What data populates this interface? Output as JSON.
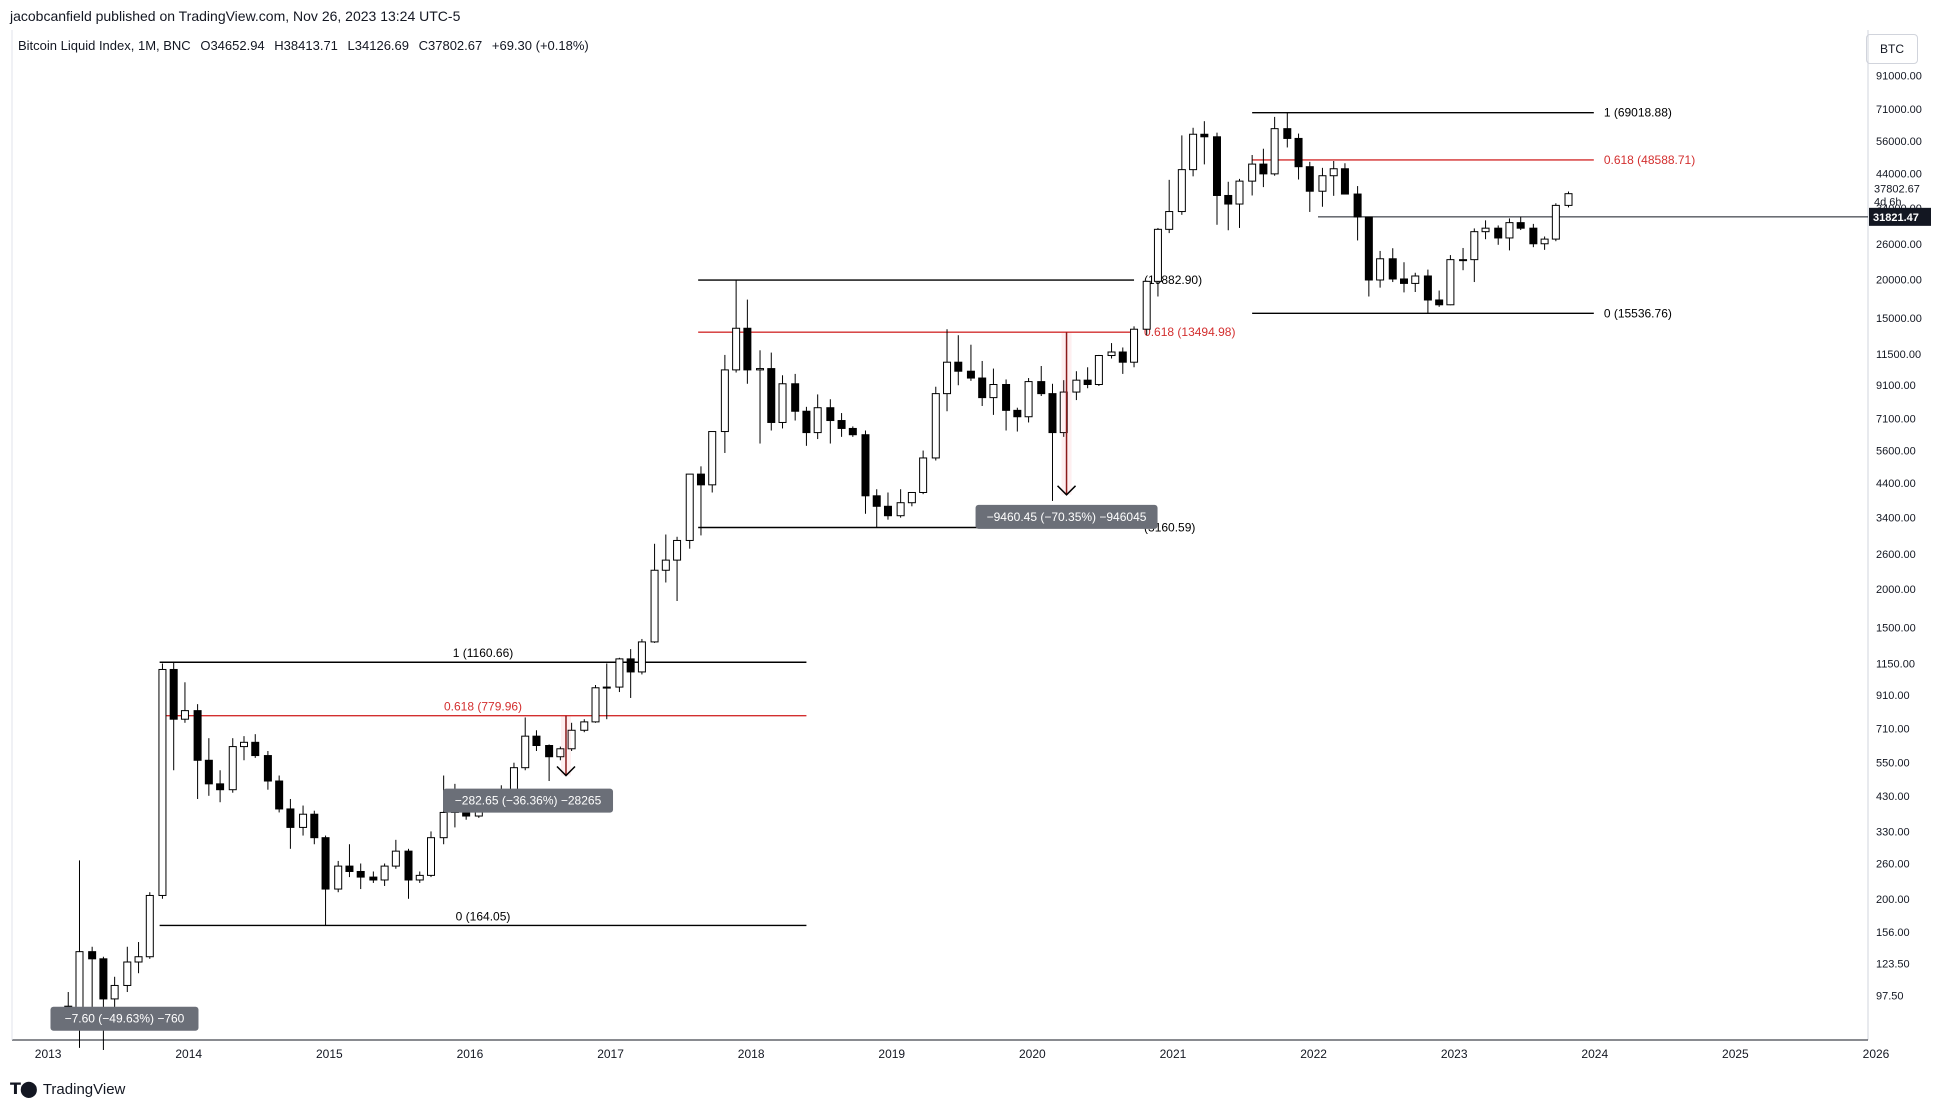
{
  "header": {
    "publish_line": "jacobcanfield published on TradingView.com, Nov 26, 2023 13:24 UTC-5",
    "symbol": "Bitcoin Liquid Index, 1M, BNC",
    "open": "O34652.94",
    "high": "H38413.71",
    "low": "L34126.69",
    "close": "C37802.67",
    "change": "+69.30 (+0.18%)",
    "currency_badge": "BTC"
  },
  "footer": {
    "brand": "TradingView",
    "brand_icon": "tradingview-logo-icon"
  },
  "price_scale": {
    "labels": [
      "91000.00",
      "71000.00",
      "56000.00",
      "44000.00",
      "34000.00",
      "26000.00",
      "20000.00",
      "15000.00",
      "11500.00",
      "9100.00",
      "7100.00",
      "5600.00",
      "4400.00",
      "3400.00",
      "2600.00",
      "2000.00",
      "1500.00",
      "1150.00",
      "910.00",
      "710.00",
      "550.00",
      "430.00",
      "330.00",
      "260.00",
      "200.00",
      "156.00",
      "123.50",
      "97.50"
    ],
    "last_price": "37802.67",
    "countdown": "4d 6h",
    "crosshair_price": "31821.47",
    "crosshair_price_color": "#131722"
  },
  "time_scale": {
    "labels": [
      "2013",
      "2014",
      "2015",
      "2016",
      "2017",
      "2018",
      "2019",
      "2020",
      "2021",
      "2022",
      "2023",
      "2024",
      "2025",
      "2026"
    ]
  },
  "colors": {
    "fib_line": "#000000",
    "fib_618": "#d32f2f",
    "measure_arrow": "#8b1a1a",
    "measure_label_bg": "#6b6f78"
  },
  "chart_data": {
    "type": "candlestick",
    "title": "Bitcoin Liquid Index, 1M, BNC",
    "y_scale": "log",
    "ylim": [
      70,
      110000
    ],
    "xlim": [
      2012.8,
      2026.0
    ],
    "grid": false,
    "fib_retracements": [
      {
        "level_1_label": "1 (1160.66)",
        "level_618_label": "0.618 (779.96)",
        "level_0_label": "0 (164.05)",
        "high": 1160.66,
        "fib618": 779.96,
        "low": 164.05
      },
      {
        "level_1_label": "(19882.90)",
        "level_618_label": "0.618 (13494.98)",
        "level_0_label": "(3160.59)",
        "high": 19882.9,
        "fib618": 13494.98,
        "low": 3160.59
      },
      {
        "level_1_label": "1 (69018.88)",
        "level_618_label": "0.618 (48588.71)",
        "level_0_label": "0 (15536.76)",
        "high": 69018.88,
        "fib618": 48588.71,
        "low": 15536.76
      }
    ],
    "measurements": [
      {
        "label": "−7.60 (−49.63%) −760"
      },
      {
        "label": "−282.65 (−36.36%) −28265"
      },
      {
        "label": "−9460.45 (−70.35%) −946045"
      }
    ],
    "candles": [
      {
        "t": 2013.2,
        "o": 90,
        "h": 100,
        "l": 78,
        "c": 80
      },
      {
        "t": 2013.28,
        "o": 80,
        "h": 266,
        "l": 66,
        "c": 135
      },
      {
        "t": 2013.37,
        "o": 135,
        "h": 140,
        "l": 85,
        "c": 128
      },
      {
        "t": 2013.45,
        "o": 128,
        "h": 130,
        "l": 65,
        "c": 95
      },
      {
        "t": 2013.53,
        "o": 95,
        "h": 112,
        "l": 84,
        "c": 105
      },
      {
        "t": 2013.62,
        "o": 105,
        "h": 140,
        "l": 100,
        "c": 125
      },
      {
        "t": 2013.7,
        "o": 125,
        "h": 145,
        "l": 115,
        "c": 130
      },
      {
        "t": 2013.78,
        "o": 130,
        "h": 210,
        "l": 128,
        "c": 205
      },
      {
        "t": 2013.87,
        "o": 205,
        "h": 1150,
        "l": 200,
        "c": 1100
      },
      {
        "t": 2013.95,
        "o": 1100,
        "h": 1160,
        "l": 520,
        "c": 760
      },
      {
        "t": 2014.03,
        "o": 760,
        "h": 1000,
        "l": 740,
        "c": 810
      },
      {
        "t": 2014.12,
        "o": 810,
        "h": 850,
        "l": 420,
        "c": 560
      },
      {
        "t": 2014.2,
        "o": 560,
        "h": 660,
        "l": 430,
        "c": 470
      },
      {
        "t": 2014.28,
        "o": 470,
        "h": 520,
        "l": 410,
        "c": 450
      },
      {
        "t": 2014.37,
        "o": 450,
        "h": 660,
        "l": 440,
        "c": 620
      },
      {
        "t": 2014.45,
        "o": 620,
        "h": 670,
        "l": 560,
        "c": 640
      },
      {
        "t": 2014.53,
        "o": 640,
        "h": 680,
        "l": 570,
        "c": 580
      },
      {
        "t": 2014.62,
        "o": 580,
        "h": 600,
        "l": 450,
        "c": 480
      },
      {
        "t": 2014.7,
        "o": 480,
        "h": 500,
        "l": 380,
        "c": 390
      },
      {
        "t": 2014.78,
        "o": 390,
        "h": 420,
        "l": 290,
        "c": 340
      },
      {
        "t": 2014.87,
        "o": 340,
        "h": 400,
        "l": 320,
        "c": 375
      },
      {
        "t": 2014.95,
        "o": 375,
        "h": 385,
        "l": 300,
        "c": 315
      },
      {
        "t": 2015.03,
        "o": 315,
        "h": 320,
        "l": 164,
        "c": 215
      },
      {
        "t": 2015.12,
        "o": 215,
        "h": 265,
        "l": 210,
        "c": 255
      },
      {
        "t": 2015.2,
        "o": 255,
        "h": 300,
        "l": 235,
        "c": 245
      },
      {
        "t": 2015.28,
        "o": 245,
        "h": 260,
        "l": 215,
        "c": 235
      },
      {
        "t": 2015.37,
        "o": 235,
        "h": 245,
        "l": 225,
        "c": 230
      },
      {
        "t": 2015.45,
        "o": 230,
        "h": 260,
        "l": 220,
        "c": 255
      },
      {
        "t": 2015.53,
        "o": 255,
        "h": 310,
        "l": 250,
        "c": 285
      },
      {
        "t": 2015.62,
        "o": 285,
        "h": 290,
        "l": 200,
        "c": 230
      },
      {
        "t": 2015.7,
        "o": 230,
        "h": 245,
        "l": 225,
        "c": 238
      },
      {
        "t": 2015.78,
        "o": 238,
        "h": 330,
        "l": 235,
        "c": 315
      },
      {
        "t": 2015.87,
        "o": 315,
        "h": 500,
        "l": 300,
        "c": 380
      },
      {
        "t": 2015.95,
        "o": 380,
        "h": 470,
        "l": 340,
        "c": 430
      },
      {
        "t": 2016.03,
        "o": 430,
        "h": 450,
        "l": 360,
        "c": 370
      },
      {
        "t": 2016.12,
        "o": 370,
        "h": 450,
        "l": 365,
        "c": 435
      },
      {
        "t": 2016.2,
        "o": 435,
        "h": 440,
        "l": 405,
        "c": 415
      },
      {
        "t": 2016.28,
        "o": 415,
        "h": 465,
        "l": 410,
        "c": 450
      },
      {
        "t": 2016.37,
        "o": 450,
        "h": 550,
        "l": 440,
        "c": 530
      },
      {
        "t": 2016.45,
        "o": 530,
        "h": 770,
        "l": 520,
        "c": 670
      },
      {
        "t": 2016.53,
        "o": 670,
        "h": 700,
        "l": 600,
        "c": 625
      },
      {
        "t": 2016.62,
        "o": 625,
        "h": 630,
        "l": 480,
        "c": 575
      },
      {
        "t": 2016.7,
        "o": 575,
        "h": 620,
        "l": 560,
        "c": 610
      },
      {
        "t": 2016.78,
        "o": 610,
        "h": 740,
        "l": 600,
        "c": 700
      },
      {
        "t": 2016.87,
        "o": 700,
        "h": 760,
        "l": 690,
        "c": 745
      },
      {
        "t": 2016.95,
        "o": 745,
        "h": 980,
        "l": 740,
        "c": 960
      },
      {
        "t": 2017.03,
        "o": 960,
        "h": 1150,
        "l": 760,
        "c": 965
      },
      {
        "t": 2017.12,
        "o": 965,
        "h": 1200,
        "l": 930,
        "c": 1190
      },
      {
        "t": 2017.2,
        "o": 1190,
        "h": 1280,
        "l": 890,
        "c": 1080
      },
      {
        "t": 2017.28,
        "o": 1080,
        "h": 1380,
        "l": 1060,
        "c": 1350
      },
      {
        "t": 2017.37,
        "o": 1350,
        "h": 2800,
        "l": 1340,
        "c": 2300
      },
      {
        "t": 2017.45,
        "o": 2300,
        "h": 3000,
        "l": 2100,
        "c": 2480
      },
      {
        "t": 2017.53,
        "o": 2480,
        "h": 2950,
        "l": 1830,
        "c": 2870
      },
      {
        "t": 2017.62,
        "o": 2870,
        "h": 4700,
        "l": 2700,
        "c": 4700
      },
      {
        "t": 2017.7,
        "o": 4700,
        "h": 4980,
        "l": 2980,
        "c": 4340
      },
      {
        "t": 2017.78,
        "o": 4340,
        "h": 6450,
        "l": 4100,
        "c": 6450
      },
      {
        "t": 2017.87,
        "o": 6450,
        "h": 11400,
        "l": 5500,
        "c": 10200
      },
      {
        "t": 2017.95,
        "o": 10200,
        "h": 19882,
        "l": 10000,
        "c": 13900
      },
      {
        "t": 2018.03,
        "o": 13900,
        "h": 17200,
        "l": 9200,
        "c": 10200
      },
      {
        "t": 2018.12,
        "o": 10200,
        "h": 11800,
        "l": 5900,
        "c": 10300
      },
      {
        "t": 2018.2,
        "o": 10300,
        "h": 11600,
        "l": 6500,
        "c": 6900
      },
      {
        "t": 2018.28,
        "o": 6900,
        "h": 9800,
        "l": 6600,
        "c": 9200
      },
      {
        "t": 2018.37,
        "o": 9200,
        "h": 9900,
        "l": 7000,
        "c": 7500
      },
      {
        "t": 2018.45,
        "o": 7500,
        "h": 7750,
        "l": 5800,
        "c": 6400
      },
      {
        "t": 2018.53,
        "o": 6400,
        "h": 8500,
        "l": 6100,
        "c": 7700
      },
      {
        "t": 2018.62,
        "o": 7700,
        "h": 8200,
        "l": 5900,
        "c": 7000
      },
      {
        "t": 2018.7,
        "o": 7000,
        "h": 7400,
        "l": 6200,
        "c": 6600
      },
      {
        "t": 2018.78,
        "o": 6600,
        "h": 6700,
        "l": 6200,
        "c": 6300
      },
      {
        "t": 2018.87,
        "o": 6300,
        "h": 6500,
        "l": 3500,
        "c": 4000
      },
      {
        "t": 2018.95,
        "o": 4000,
        "h": 4200,
        "l": 3160,
        "c": 3700
      },
      {
        "t": 2019.03,
        "o": 3700,
        "h": 4100,
        "l": 3350,
        "c": 3450
      },
      {
        "t": 2019.12,
        "o": 3450,
        "h": 4200,
        "l": 3400,
        "c": 3800
      },
      {
        "t": 2019.2,
        "o": 3800,
        "h": 4100,
        "l": 3700,
        "c": 4100
      },
      {
        "t": 2019.28,
        "o": 4100,
        "h": 5600,
        "l": 4050,
        "c": 5300
      },
      {
        "t": 2019.37,
        "o": 5300,
        "h": 9000,
        "l": 5200,
        "c": 8550
      },
      {
        "t": 2019.45,
        "o": 8550,
        "h": 13800,
        "l": 7500,
        "c": 10800
      },
      {
        "t": 2019.53,
        "o": 10800,
        "h": 13200,
        "l": 9100,
        "c": 10100
      },
      {
        "t": 2019.62,
        "o": 10100,
        "h": 12300,
        "l": 9400,
        "c": 9600
      },
      {
        "t": 2019.7,
        "o": 9600,
        "h": 10900,
        "l": 7800,
        "c": 8300
      },
      {
        "t": 2019.78,
        "o": 8300,
        "h": 10300,
        "l": 7300,
        "c": 9150
      },
      {
        "t": 2019.87,
        "o": 9150,
        "h": 9500,
        "l": 6500,
        "c": 7550
      },
      {
        "t": 2019.95,
        "o": 7550,
        "h": 7700,
        "l": 6450,
        "c": 7200
      },
      {
        "t": 2020.03,
        "o": 7200,
        "h": 9600,
        "l": 6900,
        "c": 9350
      },
      {
        "t": 2020.12,
        "o": 9350,
        "h": 10500,
        "l": 8400,
        "c": 8550
      },
      {
        "t": 2020.2,
        "o": 8550,
        "h": 9200,
        "l": 3850,
        "c": 6400
      },
      {
        "t": 2020.28,
        "o": 6400,
        "h": 9450,
        "l": 6200,
        "c": 8650
      },
      {
        "t": 2020.37,
        "o": 8650,
        "h": 10100,
        "l": 8150,
        "c": 9450
      },
      {
        "t": 2020.45,
        "o": 9450,
        "h": 10400,
        "l": 8900,
        "c": 9150
      },
      {
        "t": 2020.53,
        "o": 9150,
        "h": 11400,
        "l": 9050,
        "c": 11350
      },
      {
        "t": 2020.62,
        "o": 11350,
        "h": 12450,
        "l": 11100,
        "c": 11650
      },
      {
        "t": 2020.7,
        "o": 11650,
        "h": 12050,
        "l": 9900,
        "c": 10800
      },
      {
        "t": 2020.78,
        "o": 10800,
        "h": 14100,
        "l": 10400,
        "c": 13800
      },
      {
        "t": 2020.87,
        "o": 13800,
        "h": 19800,
        "l": 13200,
        "c": 19700
      },
      {
        "t": 2020.95,
        "o": 19700,
        "h": 29300,
        "l": 17600,
        "c": 29000
      },
      {
        "t": 2021.03,
        "o": 29000,
        "h": 41900,
        "l": 28200,
        "c": 33100
      },
      {
        "t": 2021.12,
        "o": 33100,
        "h": 58300,
        "l": 32300,
        "c": 45200
      },
      {
        "t": 2021.2,
        "o": 45200,
        "h": 61700,
        "l": 43000,
        "c": 58800
      },
      {
        "t": 2021.28,
        "o": 58800,
        "h": 64800,
        "l": 47000,
        "c": 57700
      },
      {
        "t": 2021.37,
        "o": 57700,
        "h": 59500,
        "l": 30000,
        "c": 37300
      },
      {
        "t": 2021.45,
        "o": 37300,
        "h": 41300,
        "l": 28800,
        "c": 35000
      },
      {
        "t": 2021.53,
        "o": 35000,
        "h": 42200,
        "l": 29300,
        "c": 41500
      },
      {
        "t": 2021.62,
        "o": 41500,
        "h": 50400,
        "l": 37300,
        "c": 47100
      },
      {
        "t": 2021.7,
        "o": 47100,
        "h": 52800,
        "l": 39700,
        "c": 43800
      },
      {
        "t": 2021.78,
        "o": 43800,
        "h": 66900,
        "l": 43200,
        "c": 61300
      },
      {
        "t": 2021.87,
        "o": 61300,
        "h": 69000,
        "l": 53300,
        "c": 57000
      },
      {
        "t": 2021.95,
        "o": 57000,
        "h": 59100,
        "l": 42000,
        "c": 46200
      },
      {
        "t": 2022.03,
        "o": 46200,
        "h": 47900,
        "l": 33000,
        "c": 38500
      },
      {
        "t": 2022.12,
        "o": 38500,
        "h": 45800,
        "l": 34300,
        "c": 43200
      },
      {
        "t": 2022.2,
        "o": 43200,
        "h": 48200,
        "l": 37200,
        "c": 45500
      },
      {
        "t": 2022.28,
        "o": 45500,
        "h": 47400,
        "l": 37600,
        "c": 37700
      },
      {
        "t": 2022.37,
        "o": 37700,
        "h": 40000,
        "l": 26700,
        "c": 31800
      },
      {
        "t": 2022.45,
        "o": 31800,
        "h": 31900,
        "l": 17600,
        "c": 19900
      },
      {
        "t": 2022.53,
        "o": 19900,
        "h": 24700,
        "l": 18800,
        "c": 23300
      },
      {
        "t": 2022.62,
        "o": 23300,
        "h": 25200,
        "l": 19600,
        "c": 20050
      },
      {
        "t": 2022.7,
        "o": 20050,
        "h": 22700,
        "l": 18150,
        "c": 19400
      },
      {
        "t": 2022.78,
        "o": 19400,
        "h": 21000,
        "l": 18200,
        "c": 20500
      },
      {
        "t": 2022.87,
        "o": 20500,
        "h": 21500,
        "l": 15536,
        "c": 17150
      },
      {
        "t": 2022.95,
        "o": 17150,
        "h": 18400,
        "l": 16300,
        "c": 16550
      },
      {
        "t": 2023.03,
        "o": 16550,
        "h": 23950,
        "l": 16500,
        "c": 23150
      },
      {
        "t": 2023.12,
        "o": 23150,
        "h": 25250,
        "l": 21400,
        "c": 23150
      },
      {
        "t": 2023.2,
        "o": 23150,
        "h": 29200,
        "l": 19600,
        "c": 28500
      },
      {
        "t": 2023.28,
        "o": 28500,
        "h": 31000,
        "l": 26950,
        "c": 29250
      },
      {
        "t": 2023.37,
        "o": 29250,
        "h": 29850,
        "l": 25850,
        "c": 27200
      },
      {
        "t": 2023.45,
        "o": 27200,
        "h": 31450,
        "l": 24800,
        "c": 30480
      },
      {
        "t": 2023.53,
        "o": 30480,
        "h": 31850,
        "l": 28850,
        "c": 29250
      },
      {
        "t": 2023.62,
        "o": 29250,
        "h": 30200,
        "l": 25400,
        "c": 26050
      },
      {
        "t": 2023.7,
        "o": 26050,
        "h": 27500,
        "l": 24900,
        "c": 26970
      },
      {
        "t": 2023.78,
        "o": 26970,
        "h": 35200,
        "l": 26550,
        "c": 34650
      },
      {
        "t": 2023.87,
        "o": 34650,
        "h": 38413,
        "l": 34126,
        "c": 37802
      }
    ]
  }
}
